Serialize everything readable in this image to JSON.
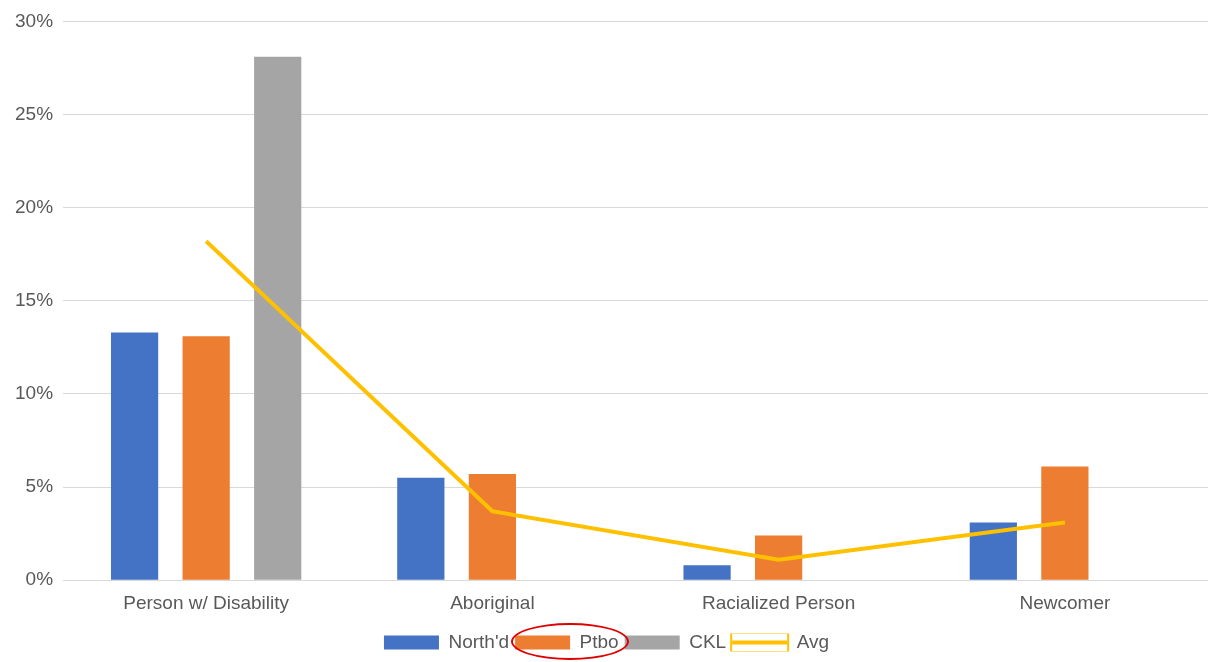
{
  "chart_data": {
    "type": "bar",
    "categories": [
      "Person w/ Disability",
      "Aboriginal",
      "Racialized Person",
      "Newcomer"
    ],
    "series": [
      {
        "name": "North'd",
        "color": "#4472c4",
        "values": [
          13.3,
          5.5,
          0.8,
          3.1
        ]
      },
      {
        "name": "Ptbo",
        "color": "#ed7d31",
        "values": [
          13.1,
          5.7,
          2.4,
          6.1
        ]
      },
      {
        "name": "CKL",
        "color": "#a5a5a5",
        "values": [
          28.1,
          null,
          null,
          null
        ]
      },
      {
        "name": "Avg",
        "type": "line",
        "color": "#ffc000",
        "values": [
          18.2,
          3.7,
          1.1,
          3.1
        ]
      }
    ],
    "ylim": [
      0,
      30
    ],
    "yticks": [
      {
        "value": 0,
        "label": "0%"
      },
      {
        "value": 5,
        "label": "5%"
      },
      {
        "value": 10,
        "label": "10%"
      },
      {
        "value": 15,
        "label": "15%"
      },
      {
        "value": 20,
        "label": "20%"
      },
      {
        "value": 25,
        "label": "25%"
      },
      {
        "value": 30,
        "label": "30%"
      }
    ],
    "grid": "y",
    "legend": "bottom",
    "marker": "none",
    "line_style": "solid"
  }
}
